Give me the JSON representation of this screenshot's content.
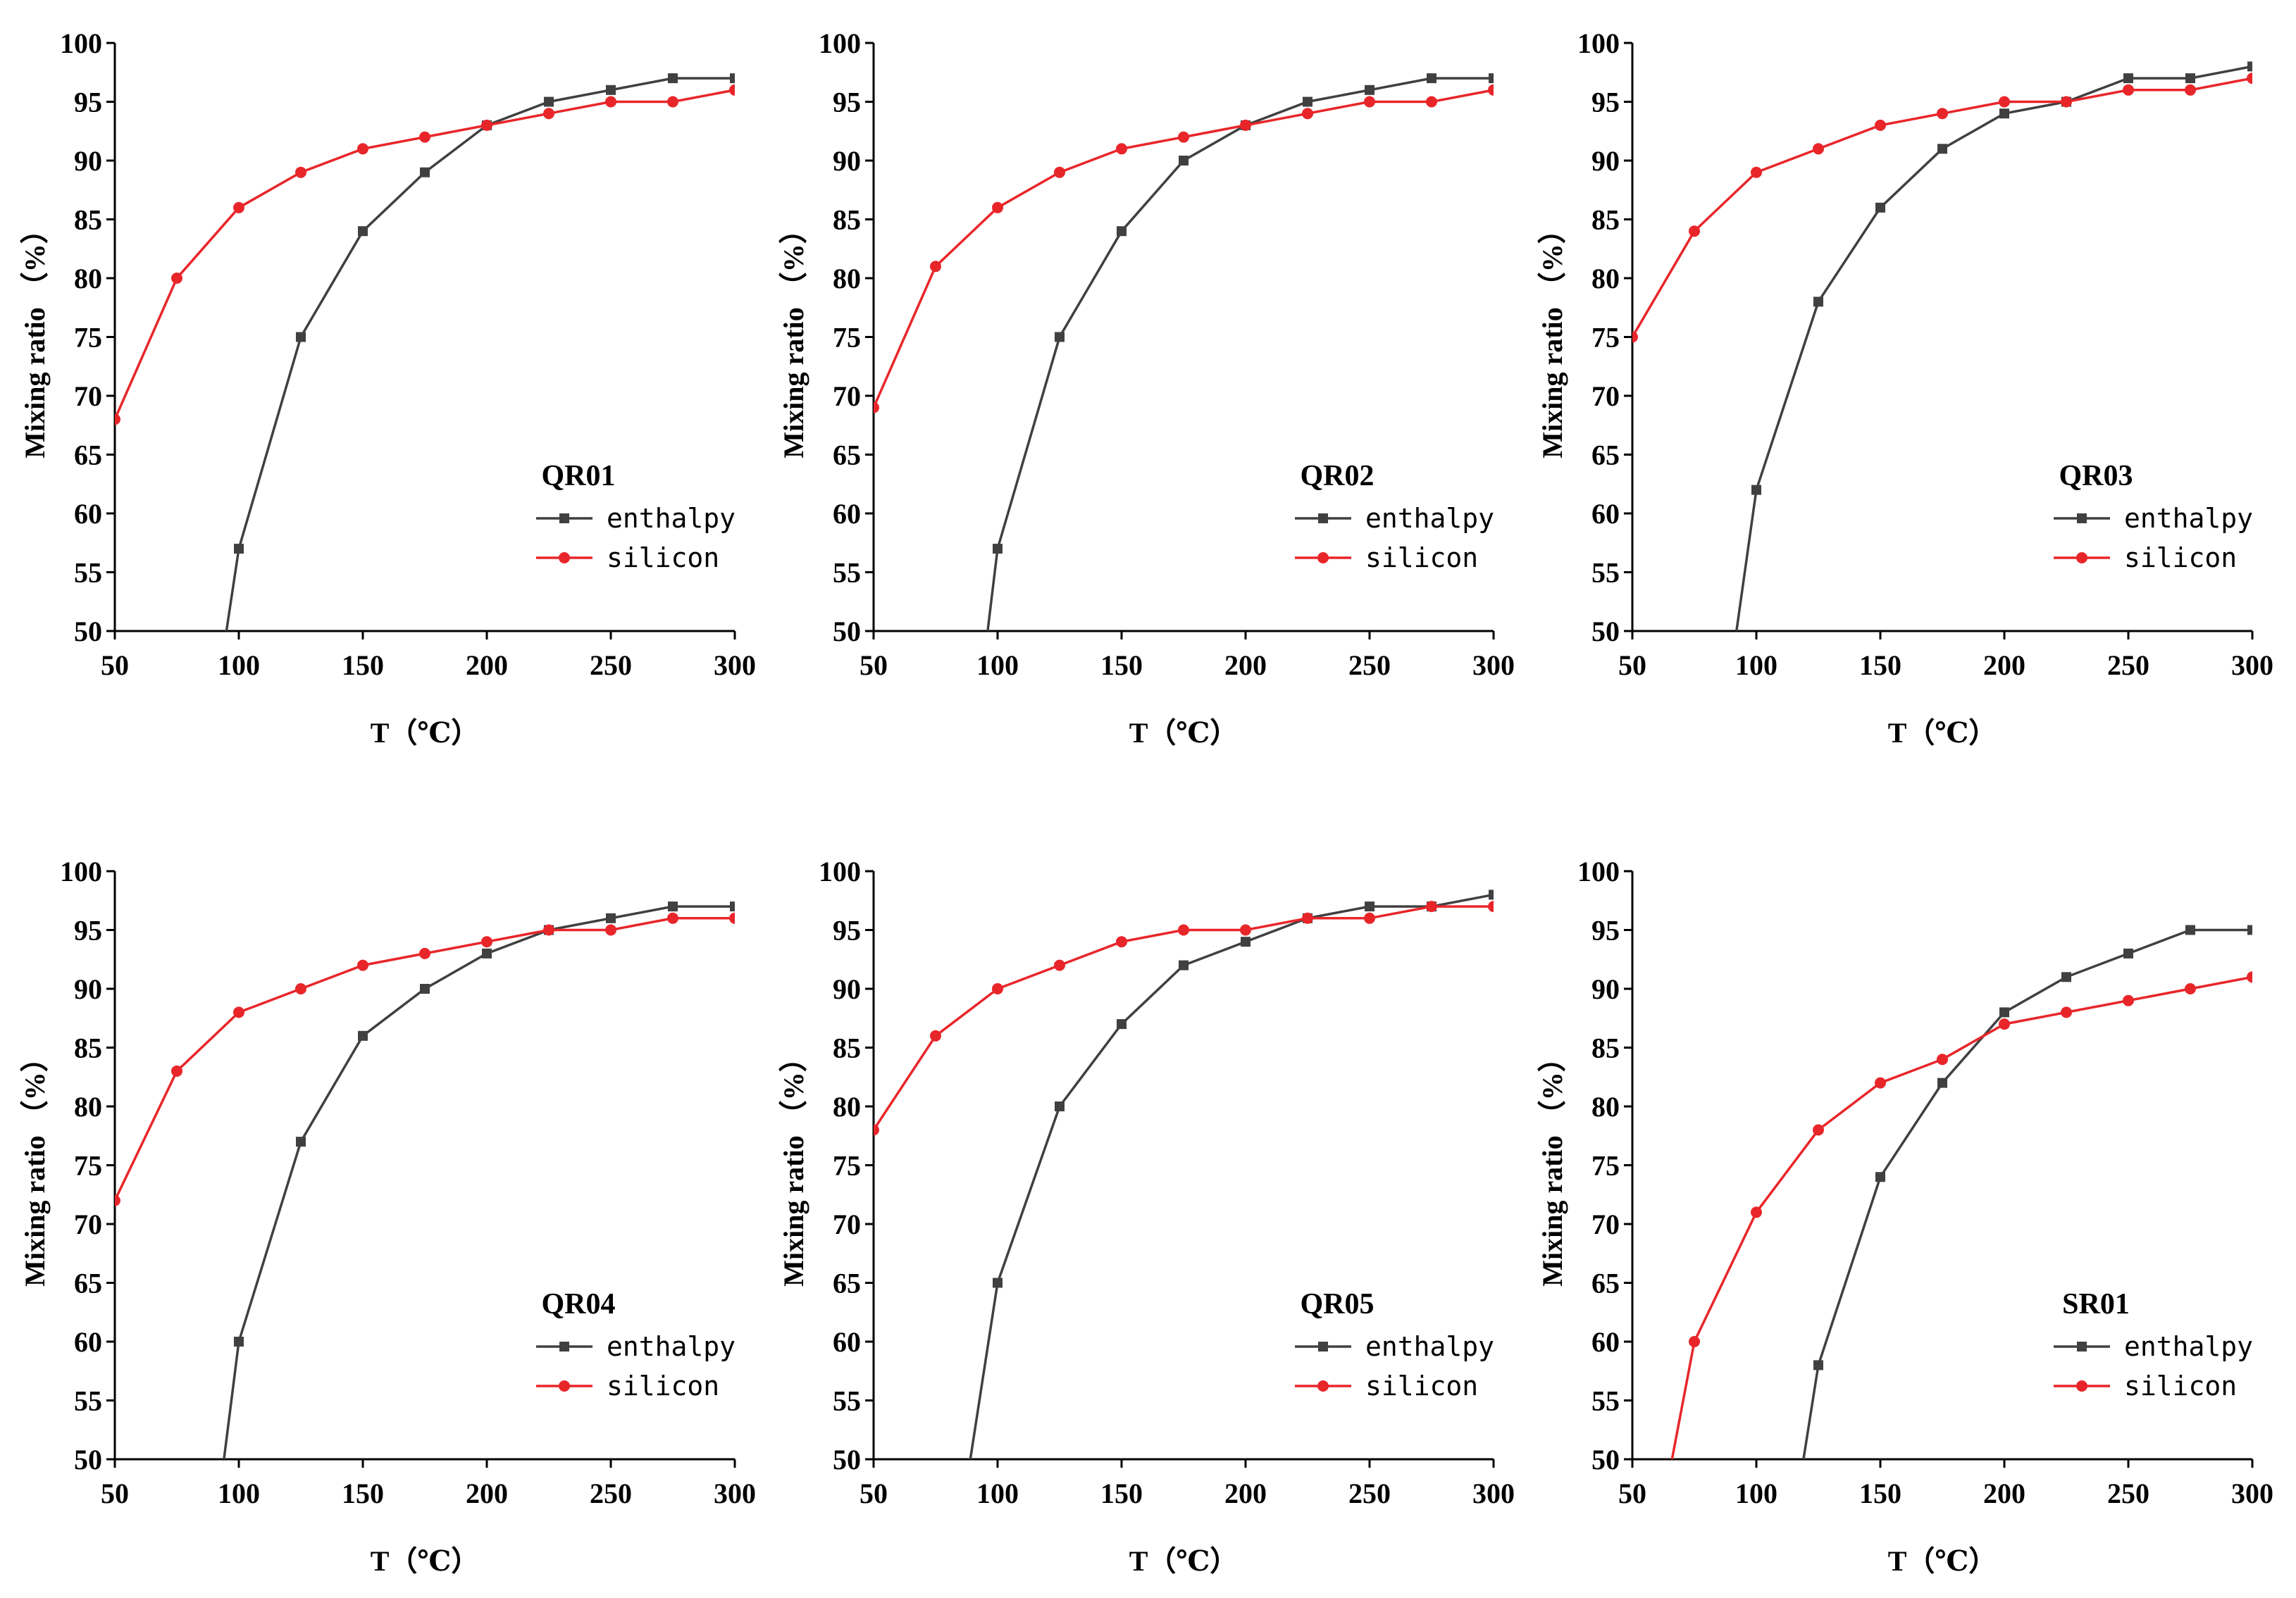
{
  "chart_data": [
    {
      "type": "line",
      "title": "QR01",
      "xlabel": "T（℃）",
      "ylabel": "Mixing ratio （%）",
      "xlim": [
        50,
        300
      ],
      "ylim": [
        50,
        100
      ],
      "xticks": [
        50,
        100,
        150,
        200,
        250,
        300
      ],
      "yticks": [
        50,
        55,
        60,
        65,
        70,
        75,
        80,
        85,
        90,
        95,
        100
      ],
      "legend_position": "lower-right",
      "series": [
        {
          "name": "enthalpy",
          "color": "#404040",
          "marker": "square",
          "points": [
            [
              95,
              50
            ],
            [
              100,
              57
            ],
            [
              125,
              75
            ],
            [
              150,
              84
            ],
            [
              175,
              89
            ],
            [
              200,
              93
            ],
            [
              225,
              95
            ],
            [
              250,
              96
            ],
            [
              275,
              97
            ],
            [
              300,
              97
            ]
          ]
        },
        {
          "name": "silicon",
          "color": "#e8262a",
          "marker": "circle",
          "points": [
            [
              50,
              68
            ],
            [
              75,
              80
            ],
            [
              100,
              86
            ],
            [
              125,
              89
            ],
            [
              150,
              91
            ],
            [
              175,
              92
            ],
            [
              200,
              93
            ],
            [
              225,
              94
            ],
            [
              250,
              95
            ],
            [
              275,
              95
            ],
            [
              300,
              96
            ]
          ]
        }
      ]
    },
    {
      "type": "line",
      "title": "QR02",
      "xlabel": "T（℃）",
      "ylabel": "Mixing ratio （%）",
      "xlim": [
        50,
        300
      ],
      "ylim": [
        50,
        100
      ],
      "xticks": [
        50,
        100,
        150,
        200,
        250,
        300
      ],
      "yticks": [
        50,
        55,
        60,
        65,
        70,
        75,
        80,
        85,
        90,
        95,
        100
      ],
      "legend_position": "lower-right",
      "series": [
        {
          "name": "enthalpy",
          "color": "#404040",
          "marker": "square",
          "points": [
            [
              96,
              50
            ],
            [
              100,
              57
            ],
            [
              125,
              75
            ],
            [
              150,
              84
            ],
            [
              175,
              90
            ],
            [
              200,
              93
            ],
            [
              225,
              95
            ],
            [
              250,
              96
            ],
            [
              275,
              97
            ],
            [
              300,
              97
            ]
          ]
        },
        {
          "name": "silicon",
          "color": "#e8262a",
          "marker": "circle",
          "points": [
            [
              50,
              69
            ],
            [
              75,
              81
            ],
            [
              100,
              86
            ],
            [
              125,
              89
            ],
            [
              150,
              91
            ],
            [
              175,
              92
            ],
            [
              200,
              93
            ],
            [
              225,
              94
            ],
            [
              250,
              95
            ],
            [
              275,
              95
            ],
            [
              300,
              96
            ]
          ]
        }
      ]
    },
    {
      "type": "line",
      "title": "QR03",
      "xlabel": "T（℃）",
      "ylabel": "Mixing ratio （%）",
      "xlim": [
        50,
        300
      ],
      "ylim": [
        50,
        100
      ],
      "xticks": [
        50,
        100,
        150,
        200,
        250,
        300
      ],
      "yticks": [
        50,
        55,
        60,
        65,
        70,
        75,
        80,
        85,
        90,
        95,
        100
      ],
      "legend_position": "lower-right",
      "series": [
        {
          "name": "enthalpy",
          "color": "#404040",
          "marker": "square",
          "points": [
            [
              92,
              50
            ],
            [
              100,
              62
            ],
            [
              125,
              78
            ],
            [
              150,
              86
            ],
            [
              175,
              91
            ],
            [
              200,
              94
            ],
            [
              225,
              95
            ],
            [
              250,
              97
            ],
            [
              275,
              97
            ],
            [
              300,
              98
            ]
          ]
        },
        {
          "name": "silicon",
          "color": "#e8262a",
          "marker": "circle",
          "points": [
            [
              50,
              75
            ],
            [
              75,
              84
            ],
            [
              100,
              89
            ],
            [
              125,
              91
            ],
            [
              150,
              93
            ],
            [
              175,
              94
            ],
            [
              200,
              95
            ],
            [
              225,
              95
            ],
            [
              250,
              96
            ],
            [
              275,
              96
            ],
            [
              300,
              97
            ]
          ]
        }
      ]
    },
    {
      "type": "line",
      "title": "QR04",
      "xlabel": "T（℃）",
      "ylabel": "Mixing ratio （%）",
      "xlim": [
        50,
        300
      ],
      "ylim": [
        50,
        100
      ],
      "xticks": [
        50,
        100,
        150,
        200,
        250,
        300
      ],
      "yticks": [
        50,
        55,
        60,
        65,
        70,
        75,
        80,
        85,
        90,
        95,
        100
      ],
      "legend_position": "lower-right",
      "series": [
        {
          "name": "enthalpy",
          "color": "#404040",
          "marker": "square",
          "points": [
            [
              94,
              50
            ],
            [
              100,
              60
            ],
            [
              125,
              77
            ],
            [
              150,
              86
            ],
            [
              175,
              90
            ],
            [
              200,
              93
            ],
            [
              225,
              95
            ],
            [
              250,
              96
            ],
            [
              275,
              97
            ],
            [
              300,
              97
            ]
          ]
        },
        {
          "name": "silicon",
          "color": "#e8262a",
          "marker": "circle",
          "points": [
            [
              50,
              72
            ],
            [
              75,
              83
            ],
            [
              100,
              88
            ],
            [
              125,
              90
            ],
            [
              150,
              92
            ],
            [
              175,
              93
            ],
            [
              200,
              94
            ],
            [
              225,
              95
            ],
            [
              250,
              95
            ],
            [
              275,
              96
            ],
            [
              300,
              96
            ]
          ]
        }
      ]
    },
    {
      "type": "line",
      "title": "QR05",
      "xlabel": "T（℃）",
      "ylabel": "Mixing ratio （%）",
      "xlim": [
        50,
        300
      ],
      "ylim": [
        50,
        100
      ],
      "xticks": [
        50,
        100,
        150,
        200,
        250,
        300
      ],
      "yticks": [
        50,
        55,
        60,
        65,
        70,
        75,
        80,
        85,
        90,
        95,
        100
      ],
      "legend_position": "lower-right",
      "series": [
        {
          "name": "enthalpy",
          "color": "#404040",
          "marker": "square",
          "points": [
            [
              89,
              50
            ],
            [
              100,
              65
            ],
            [
              125,
              80
            ],
            [
              150,
              87
            ],
            [
              175,
              92
            ],
            [
              200,
              94
            ],
            [
              225,
              96
            ],
            [
              250,
              97
            ],
            [
              275,
              97
            ],
            [
              300,
              98
            ]
          ]
        },
        {
          "name": "silicon",
          "color": "#e8262a",
          "marker": "circle",
          "points": [
            [
              50,
              78
            ],
            [
              75,
              86
            ],
            [
              100,
              90
            ],
            [
              125,
              92
            ],
            [
              150,
              94
            ],
            [
              175,
              95
            ],
            [
              200,
              95
            ],
            [
              225,
              96
            ],
            [
              250,
              96
            ],
            [
              275,
              97
            ],
            [
              300,
              97
            ]
          ]
        }
      ]
    },
    {
      "type": "line",
      "title": "SR01",
      "xlabel": "T（℃）",
      "ylabel": "Mixing ratio （%）",
      "xlim": [
        50,
        300
      ],
      "ylim": [
        50,
        100
      ],
      "xticks": [
        50,
        100,
        150,
        200,
        250,
        300
      ],
      "yticks": [
        50,
        55,
        60,
        65,
        70,
        75,
        80,
        85,
        90,
        95,
        100
      ],
      "legend_position": "lower-right",
      "series": [
        {
          "name": "enthalpy",
          "color": "#404040",
          "marker": "square",
          "points": [
            [
              119,
              50
            ],
            [
              125,
              58
            ],
            [
              150,
              74
            ],
            [
              175,
              82
            ],
            [
              200,
              88
            ],
            [
              225,
              91
            ],
            [
              250,
              93
            ],
            [
              275,
              95
            ],
            [
              300,
              95
            ]
          ]
        },
        {
          "name": "silicon",
          "color": "#e8262a",
          "marker": "circle",
          "points": [
            [
              66,
              50
            ],
            [
              75,
              60
            ],
            [
              100,
              71
            ],
            [
              125,
              78
            ],
            [
              150,
              82
            ],
            [
              175,
              84
            ],
            [
              200,
              87
            ],
            [
              225,
              88
            ],
            [
              250,
              89
            ],
            [
              275,
              90
            ],
            [
              300,
              91
            ]
          ]
        }
      ]
    }
  ]
}
